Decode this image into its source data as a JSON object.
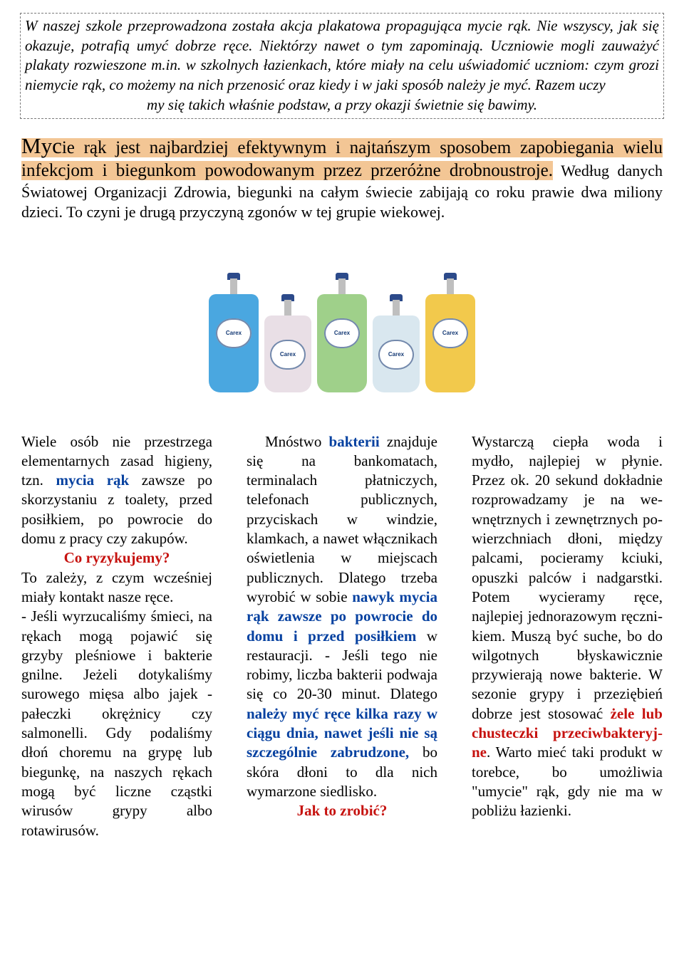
{
  "colors": {
    "highlight_bg": "#f3c695",
    "blue_text": "#0641a0",
    "red_text": "#c6120f",
    "black_text": "#000000",
    "page_bg": "#ffffff",
    "border_dash": "#7a7a7a"
  },
  "typography": {
    "body_font": "Times New Roman",
    "intro_font": "Comic Sans MS",
    "body_fontsize_pt": 16,
    "lead_fontsize_pt": 17,
    "intro_fontsize_pt": 16
  },
  "intro": {
    "text_main": "W naszej szkole przeprowadzona została akcja plakatowa propagująca mycie rąk. Nie wszyscy, jak się okazuje, potrafią umyć dobrze ręce. Niektórzy nawet o tym zapominają. Uczniowie mogli zauważyć plakaty rozwieszone m.in. w szkolnych ła­zienkach, które miały na celu uświadomić uczniom: czym grozi niemycie rąk, co możemy na nich przenosić oraz kiedy i w jaki sposób należy je myć. Razem uczy­",
    "text_lastline": "my się takich właśnie podstaw, a przy okazji świetnie się bawimy."
  },
  "lead": {
    "highlight_firstword": "Myc",
    "highlight_rest": "ie rąk jest najbardziej efektywnym i najtańszym sposobem zapobiegania wielu infekcjom i biegunkom powodowanym przez przeróżne drobnoustroje.",
    "plain": " Według danych Światowej Organizacji Zdrowia, biegunki na całym świecie zabijają co roku prawie dwa miliony dzieci. To czyni je drugą przyczyną zgonów w tej grupie wiekowej."
  },
  "bottles": [
    {
      "pump": "#2c4a8a",
      "body": "#4aa7e0",
      "tall": true,
      "label": "Carex"
    },
    {
      "pump": "#2c4a8a",
      "body": "#e9dfe6",
      "tall": false,
      "label": "Carex"
    },
    {
      "pump": "#2c4a8a",
      "body": "#9fd08a",
      "tall": true,
      "label": "Carex"
    },
    {
      "pump": "#2c4a8a",
      "body": "#d9e7ef",
      "tall": false,
      "label": "Carex"
    },
    {
      "pump": "#2c4a8a",
      "body": "#f2c94c",
      "tall": true,
      "label": "Carex"
    }
  ],
  "columns": {
    "col1": {
      "p1_a": "Wiele osób nie przestrze­ga elementarnych zasad higieny, tzn. ",
      "p1_blue_bold": "mycia rąk",
      "p1_b": " zawsze po skorzystaniu z toalety, przed posiłkiem, po powrocie do domu z pracy czy zakupów.",
      "risk_label": "Co ryzykujemy?",
      "p2": "To zależy, z czym wcze­śniej miały kontakt nasze ręce.",
      "p3": " - Jeśli wyrzucaliśmy śmieci, na rękach mogą pojawić się grzyby ple­śniowe i bakterie gnilne. Jeżeli dotykaliśmy suro­wego mięsa albo jajek - pałeczki okrężnicy czy salmonelli. Gdy podali­śmy dłoń choremu na grypę lub biegunkę, na naszych rękach mogą być liczne cząstki wirusów grypy albo rotawirusów."
    },
    "col2": {
      "p1_a": "Mnóstwo ",
      "p1_blue_bold": "bakterii",
      "p1_b": " znajduje się na bankoma­tach, terminalach płatni­czych, telefonach pu­blicznych, przyciskach w windzie, klamkach, a nawet włącznikach oświetlenia w miejscach publicznych. Dlatego trzeba wyrobić w sobie ",
      "p1_blue_bold2": "nawyk mycia rąk zawsze po powrocie do domu i przed posiłkiem",
      "p1_c": " w restauracji. - Jeśli tego nie robimy, liczba bakterii podwaja się co 20-30 mi­nut. Dlatego ",
      "p1_blue_bold3": "należy myć ręce kilka razy w ciągu dnia, nawet jeśli nie są szczególnie zabrudzone,",
      "p1_d": " bo skóra dłoni to dla nich wymarzone siedlisko.",
      "howto_label": "Jak to zrobić?"
    },
    "col3": {
      "p1_a": "Wystarczą ciepła woda i mydło, najlepiej w płynie. Przez ok. 20 sekund dokładnie rozpro­wadzamy je na we­wnętrznych i zewnętrznych po­wierzchniach dłoni, mię­dzy palcami, pocieramy kciuki, opuszki palców i nadgarstki. Potem wy­cieramy ręce, najlepiej jednorazowym ręczni­kiem. Muszą być suche, bo do wilgotnych błyska­wicznie przywierają nowe bakterie. W sezonie grypy i przeziębień dobrze jest stosować ",
      "p1_red_bold": "żele lub chus­teczki przeciwbakteryj­ne",
      "p1_b": ". Warto mieć taki pro­dukt w torebce, bo umoż­liwia \"umycie\" rąk, gdy nie ma w pobliżu łazienki."
    }
  }
}
